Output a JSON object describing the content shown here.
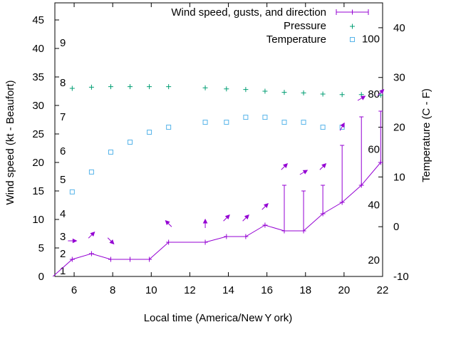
{
  "chart_data": {
    "type": "line",
    "xlabel": "Local time (America/New Y ork)",
    "ylabel_left": "Wind speed (kt - Beaufort)",
    "ylabel_right": "Temperature (C - F)",
    "xlim": [
      5,
      22
    ],
    "ylim": [
      0,
      48
    ],
    "y2lim": [
      -10,
      45
    ],
    "x_ticks": [
      6,
      8,
      10,
      12,
      14,
      16,
      18,
      20,
      22
    ],
    "y_ticks": [
      0,
      5,
      10,
      15,
      20,
      25,
      30,
      35,
      40,
      45
    ],
    "y2_ticks": [
      -10,
      0,
      10,
      20,
      30,
      40
    ],
    "beaufort_labels": [
      {
        "label": "1",
        "y": 1
      },
      {
        "label": "2",
        "y": 4
      },
      {
        "label": "3",
        "y": 7
      },
      {
        "label": "4",
        "y": 11
      },
      {
        "label": "5",
        "y": 17
      },
      {
        "label": "6",
        "y": 22
      },
      {
        "label": "7",
        "y": 28
      },
      {
        "label": "8",
        "y": 34
      },
      {
        "label": "9",
        "y": 41
      }
    ],
    "fahrenheit_labels": [
      {
        "label": "20",
        "y2": -6.7
      },
      {
        "label": "40",
        "y2": 4.4
      },
      {
        "label": "60",
        "y2": 15.6
      },
      {
        "label": "80",
        "y2": 26.7
      },
      {
        "label": "100",
        "y2": 37.8
      }
    ],
    "legend": {
      "position": "top-right",
      "entries": [
        {
          "label": "Wind speed, gusts, and direction",
          "color": "#9400d3",
          "symbol": "line-plus"
        },
        {
          "label": "Pressure",
          "color": "#009e73",
          "symbol": "plus"
        },
        {
          "label": "Temperature",
          "color": "#56b4e9",
          "symbol": "square"
        }
      ]
    },
    "series": [
      {
        "name": "Wind speed, gusts, and direction",
        "color": "#9400d3",
        "x": [
          4.9,
          5.9,
          6.9,
          7.9,
          8.9,
          9.9,
          10.9,
          12.8,
          13.9,
          14.9,
          15.9,
          16.9,
          17.9,
          18.9,
          19.9,
          20.9,
          21.9
        ],
        "y": [
          0,
          3,
          4,
          3,
          3,
          3,
          6,
          6,
          7,
          7,
          9,
          8,
          8,
          11,
          13,
          16,
          20
        ],
        "gusts": [
          null,
          null,
          null,
          null,
          null,
          null,
          null,
          null,
          null,
          null,
          null,
          16,
          15,
          16,
          23,
          28,
          29
        ],
        "direction_deg": [
          null,
          90,
          45,
          135,
          null,
          null,
          315,
          0,
          45,
          45,
          45,
          45,
          60,
          45,
          30,
          60,
          45
        ]
      },
      {
        "name": "Pressure",
        "color": "#009e73",
        "x": [
          5.9,
          6.9,
          7.9,
          8.9,
          9.9,
          10.9,
          12.8,
          13.9,
          14.9,
          15.9,
          16.9,
          17.9,
          18.9,
          19.9,
          20.9,
          21.9
        ],
        "y": [
          33.0,
          33.2,
          33.3,
          33.3,
          33.3,
          33.3,
          33.1,
          32.9,
          32.8,
          32.5,
          32.3,
          32.2,
          32.0,
          31.9,
          31.9,
          31.8
        ]
      },
      {
        "name": "Temperature",
        "color": "#56b4e9",
        "x": [
          5.9,
          6.9,
          7.9,
          8.9,
          9.9,
          10.9,
          12.8,
          13.9,
          14.9,
          15.9,
          16.9,
          17.9,
          18.9,
          19.9
        ],
        "y2": [
          7,
          11,
          15,
          17,
          19,
          20,
          21,
          21,
          22,
          22,
          21,
          21,
          20,
          20
        ]
      }
    ]
  }
}
